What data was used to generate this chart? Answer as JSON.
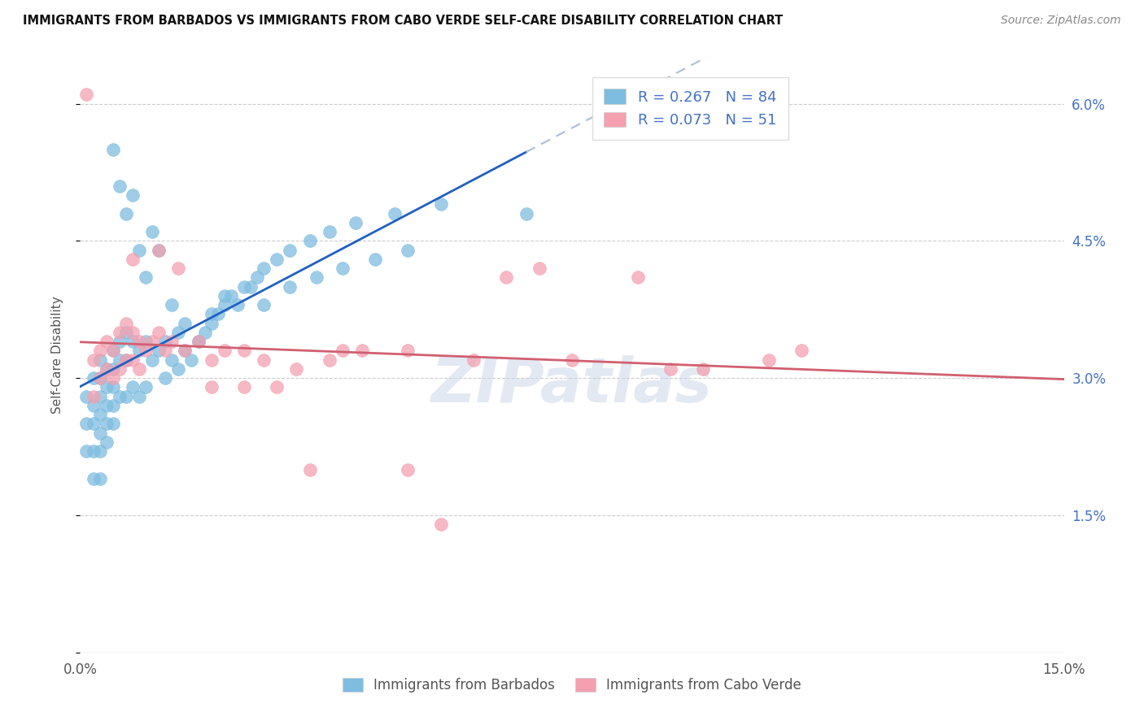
{
  "title": "IMMIGRANTS FROM BARBADOS VS IMMIGRANTS FROM CABO VERDE SELF-CARE DISABILITY CORRELATION CHART",
  "source": "Source: ZipAtlas.com",
  "ylabel": "Self-Care Disability",
  "x_min": 0.0,
  "x_max": 0.15,
  "y_min": 0.0,
  "y_max": 0.065,
  "x_ticks": [
    0.0,
    0.03,
    0.06,
    0.09,
    0.12,
    0.15
  ],
  "x_tick_labels": [
    "0.0%",
    "",
    "",
    "",
    "",
    "15.0%"
  ],
  "y_ticks": [
    0.0,
    0.015,
    0.03,
    0.045,
    0.06
  ],
  "y_tick_labels_right": [
    "",
    "1.5%",
    "3.0%",
    "4.5%",
    "6.0%"
  ],
  "legend_R_barbados": "0.267",
  "legend_N_barbados": "84",
  "legend_R_caboverde": "0.073",
  "legend_N_caboverde": "51",
  "color_barbados": "#7fbde0",
  "color_caboverde": "#f4a0b0",
  "trendline_barbados_color": "#2060c0",
  "trendline_caboverde_color": "#d06070",
  "trendline_ext_color": "#aabfd8",
  "watermark": "ZIPatlas",
  "label_barbados": "Immigrants from Barbados",
  "label_caboverde": "Immigrants from Cabo Verde",
  "barbados_x": [
    0.001,
    0.001,
    0.001,
    0.002,
    0.002,
    0.002,
    0.002,
    0.002,
    0.003,
    0.003,
    0.003,
    0.003,
    0.003,
    0.003,
    0.003,
    0.004,
    0.004,
    0.004,
    0.004,
    0.004,
    0.005,
    0.005,
    0.005,
    0.005,
    0.005,
    0.006,
    0.006,
    0.006,
    0.007,
    0.007,
    0.007,
    0.008,
    0.008,
    0.009,
    0.009,
    0.01,
    0.01,
    0.011,
    0.012,
    0.013,
    0.013,
    0.014,
    0.015,
    0.015,
    0.016,
    0.017,
    0.018,
    0.019,
    0.02,
    0.021,
    0.022,
    0.023,
    0.025,
    0.027,
    0.028,
    0.03,
    0.032,
    0.035,
    0.038,
    0.042,
    0.048,
    0.055,
    0.068,
    0.005,
    0.006,
    0.007,
    0.008,
    0.009,
    0.01,
    0.011,
    0.012,
    0.014,
    0.016,
    0.018,
    0.02,
    0.022,
    0.024,
    0.026,
    0.028,
    0.032,
    0.036,
    0.04,
    0.045,
    0.05
  ],
  "barbados_y": [
    0.028,
    0.025,
    0.022,
    0.03,
    0.027,
    0.025,
    0.022,
    0.019,
    0.032,
    0.03,
    0.028,
    0.026,
    0.024,
    0.022,
    0.019,
    0.031,
    0.029,
    0.027,
    0.025,
    0.023,
    0.033,
    0.031,
    0.029,
    0.027,
    0.025,
    0.034,
    0.032,
    0.028,
    0.035,
    0.032,
    0.028,
    0.034,
    0.029,
    0.033,
    0.028,
    0.034,
    0.029,
    0.032,
    0.033,
    0.034,
    0.03,
    0.032,
    0.035,
    0.031,
    0.033,
    0.032,
    0.034,
    0.035,
    0.036,
    0.037,
    0.038,
    0.039,
    0.04,
    0.041,
    0.042,
    0.043,
    0.044,
    0.045,
    0.046,
    0.047,
    0.048,
    0.049,
    0.048,
    0.055,
    0.051,
    0.048,
    0.05,
    0.044,
    0.041,
    0.046,
    0.044,
    0.038,
    0.036,
    0.034,
    0.037,
    0.039,
    0.038,
    0.04,
    0.038,
    0.04,
    0.041,
    0.042,
    0.043,
    0.044
  ],
  "caboverde_x": [
    0.001,
    0.002,
    0.002,
    0.003,
    0.003,
    0.004,
    0.004,
    0.005,
    0.005,
    0.006,
    0.006,
    0.007,
    0.007,
    0.008,
    0.008,
    0.009,
    0.009,
    0.01,
    0.011,
    0.012,
    0.013,
    0.014,
    0.016,
    0.018,
    0.02,
    0.022,
    0.025,
    0.028,
    0.033,
    0.038,
    0.043,
    0.05,
    0.055,
    0.065,
    0.075,
    0.085,
    0.095,
    0.105,
    0.008,
    0.012,
    0.015,
    0.02,
    0.025,
    0.03,
    0.035,
    0.04,
    0.05,
    0.06,
    0.07,
    0.09,
    0.11
  ],
  "caboverde_y": [
    0.061,
    0.032,
    0.028,
    0.033,
    0.03,
    0.034,
    0.031,
    0.033,
    0.03,
    0.035,
    0.031,
    0.036,
    0.032,
    0.035,
    0.032,
    0.034,
    0.031,
    0.033,
    0.034,
    0.035,
    0.033,
    0.034,
    0.033,
    0.034,
    0.032,
    0.033,
    0.033,
    0.032,
    0.031,
    0.032,
    0.033,
    0.033,
    0.014,
    0.041,
    0.032,
    0.041,
    0.031,
    0.032,
    0.043,
    0.044,
    0.042,
    0.029,
    0.029,
    0.029,
    0.02,
    0.033,
    0.02,
    0.032,
    0.042,
    0.031,
    0.033
  ]
}
